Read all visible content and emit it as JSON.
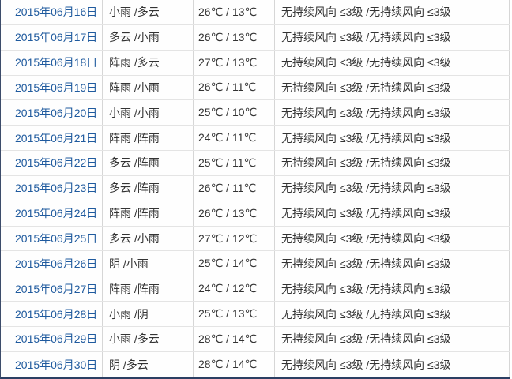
{
  "colors": {
    "date_link_blue": "#1f5a9e",
    "body_text": "#333333",
    "row_divider": "#e4e4e4",
    "column_divider": "#d6d6d6",
    "outer_border_dark": "#2b3f63"
  },
  "table": {
    "rows": [
      {
        "date": "2015年06月16日",
        "weather": "小雨 /多云",
        "temperature": "26℃ / 13℃",
        "wind": "无持续风向 ≤3级 /无持续风向 ≤3级"
      },
      {
        "date": "2015年06月17日",
        "weather": "多云 /小雨",
        "temperature": "26℃ / 13℃",
        "wind": "无持续风向 ≤3级 /无持续风向 ≤3级"
      },
      {
        "date": "2015年06月18日",
        "weather": "阵雨 /多云",
        "temperature": "27℃ / 13℃",
        "wind": "无持续风向 ≤3级 /无持续风向 ≤3级"
      },
      {
        "date": "2015年06月19日",
        "weather": "阵雨 /小雨",
        "temperature": "26℃ / 11℃",
        "wind": "无持续风向 ≤3级 /无持续风向 ≤3级"
      },
      {
        "date": "2015年06月20日",
        "weather": "小雨 /小雨",
        "temperature": "25℃ / 10℃",
        "wind": "无持续风向 ≤3级 /无持续风向 ≤3级"
      },
      {
        "date": "2015年06月21日",
        "weather": "阵雨 /阵雨",
        "temperature": "24℃ / 11℃",
        "wind": "无持续风向 ≤3级 /无持续风向 ≤3级"
      },
      {
        "date": "2015年06月22日",
        "weather": "多云 /阵雨",
        "temperature": "25℃ / 11℃",
        "wind": "无持续风向 ≤3级 /无持续风向 ≤3级"
      },
      {
        "date": "2015年06月23日",
        "weather": "多云 /阵雨",
        "temperature": "26℃ / 11℃",
        "wind": "无持续风向 ≤3级 /无持续风向 ≤3级"
      },
      {
        "date": "2015年06月24日",
        "weather": "阵雨 /阵雨",
        "temperature": "26℃ / 13℃",
        "wind": "无持续风向 ≤3级 /无持续风向 ≤3级"
      },
      {
        "date": "2015年06月25日",
        "weather": "多云 /小雨",
        "temperature": "27℃ / 12℃",
        "wind": "无持续风向 ≤3级 /无持续风向 ≤3级"
      },
      {
        "date": "2015年06月26日",
        "weather": "阴 /小雨",
        "temperature": "25℃ / 14℃",
        "wind": "无持续风向 ≤3级 /无持续风向 ≤3级"
      },
      {
        "date": "2015年06月27日",
        "weather": "阵雨 /阵雨",
        "temperature": "24℃ / 12℃",
        "wind": "无持续风向 ≤3级 /无持续风向 ≤3级"
      },
      {
        "date": "2015年06月28日",
        "weather": "小雨 /阴",
        "temperature": "25℃ / 13℃",
        "wind": "无持续风向 ≤3级 /无持续风向 ≤3级"
      },
      {
        "date": "2015年06月29日",
        "weather": "小雨 /多云",
        "temperature": "28℃ / 14℃",
        "wind": "无持续风向 ≤3级 /无持续风向 ≤3级"
      },
      {
        "date": "2015年06月30日",
        "weather": "阴 /多云",
        "temperature": "28℃ / 14℃",
        "wind": "无持续风向 ≤3级 /无持续风向 ≤3级"
      }
    ]
  }
}
